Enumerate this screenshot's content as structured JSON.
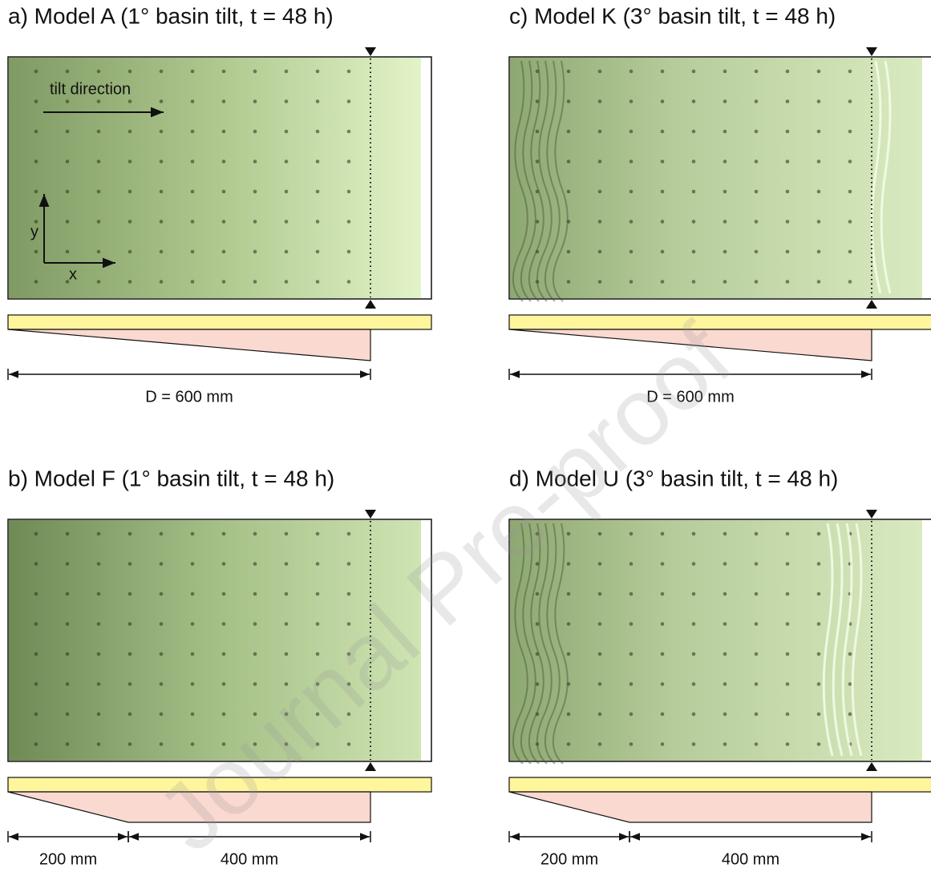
{
  "panels": [
    {
      "title": "a) Model A (1° basin tilt, t = 48 h)",
      "dimensions": [
        "D = 600 mm"
      ]
    },
    {
      "title": "b) Model F (1° basin tilt, t = 48 h)",
      "dimensions": [
        "200 mm",
        "400 mm"
      ]
    },
    {
      "title": "c) Model K (3° basin tilt, t = 48 h)",
      "dimensions": [
        "D = 600 mm"
      ]
    },
    {
      "title": "d) Model U (3° basin tilt, t = 48 h)",
      "dimensions": [
        "200 mm",
        "400 mm"
      ]
    }
  ],
  "annotations": {
    "tilt": "tilt direction",
    "x": "x",
    "y": "y"
  },
  "watermark": "Journal Pre-proof"
}
